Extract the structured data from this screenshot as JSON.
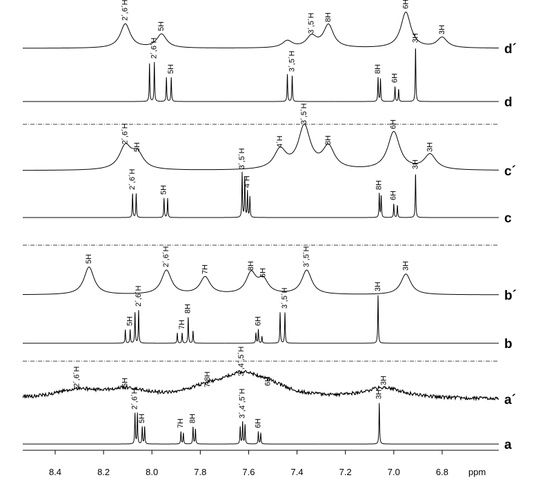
{
  "chart_data": {
    "type": "spectrum",
    "x_label": "ppm",
    "color": "#000000",
    "xlim": [
      8.534,
      6.566
    ],
    "xticks": [
      8.4,
      8.2,
      {
        "value": 8,
        "label": "8.0"
      },
      7.8,
      7.6,
      7.4,
      7.2,
      {
        "value": 7,
        "label": "7.0"
      },
      6.8
    ],
    "series": [
      {
        "name": "d´",
        "width": 0.025,
        "noisy": false,
        "peaks": [
          {
            "ppm": 8.11,
            "height": 35,
            "label": "2´,6´H"
          },
          {
            "ppm": 7.96,
            "height": 20,
            "label": "5H"
          },
          {
            "ppm": 7.44,
            "height": 10
          },
          {
            "ppm": 7.34,
            "height": 16,
            "label": "3´,5´H"
          },
          {
            "ppm": 7.27,
            "height": 33,
            "label": "8H"
          },
          {
            "ppm": 6.95,
            "height": 52,
            "label": "6H"
          },
          {
            "ppm": 6.8,
            "height": 15,
            "label": "3H"
          }
        ]
      },
      {
        "name": "d",
        "width": 0.0015,
        "noisy": false,
        "peaks": [
          {
            "ppm": 8.01,
            "height": 55
          },
          {
            "ppm": 7.99,
            "height": 57,
            "label": "2´,6´H"
          },
          {
            "ppm": 7.94,
            "height": 35
          },
          {
            "ppm": 7.92,
            "height": 35,
            "label": "5H"
          },
          {
            "ppm": 7.44,
            "height": 40
          },
          {
            "ppm": 7.42,
            "height": 38,
            "label": "3´,5´H"
          },
          {
            "ppm": 7.065,
            "height": 35,
            "label": "8H"
          },
          {
            "ppm": 7.055,
            "height": 33
          },
          {
            "ppm": 6.995,
            "height": 22,
            "label": "6H"
          },
          {
            "ppm": 6.98,
            "height": 18
          },
          {
            "ppm": 6.91,
            "height": 80,
            "label": "3H"
          }
        ]
      },
      {
        "name": "c´",
        "width": 0.03,
        "noisy": false,
        "peaks": [
          {
            "ppm": 8.11,
            "height": 33,
            "label": "2´,6´H"
          },
          {
            "ppm": 8.06,
            "height": 22,
            "label": "5H"
          },
          {
            "ppm": 7.47,
            "height": 28,
            "label": "4´H"
          },
          {
            "ppm": 7.37,
            "height": 62,
            "label": "3´,5´H"
          },
          {
            "ppm": 7.27,
            "height": 32,
            "label": "8H"
          },
          {
            "ppm": 7.0,
            "height": 55,
            "label": "6H"
          },
          {
            "ppm": 6.85,
            "height": 22,
            "label": "3H"
          }
        ]
      },
      {
        "name": "c",
        "width": 0.0015,
        "noisy": false,
        "peaks": [
          {
            "ppm": 8.08,
            "height": 35,
            "label": "2´,6´H"
          },
          {
            "ppm": 8.065,
            "height": 35
          },
          {
            "ppm": 7.95,
            "height": 28,
            "label": "5H"
          },
          {
            "ppm": 7.935,
            "height": 28
          },
          {
            "ppm": 7.627,
            "height": 65,
            "label": "3´,5´H"
          },
          {
            "ppm": 7.616,
            "height": 60
          },
          {
            "ppm": 7.605,
            "height": 38,
            "label": "4´H"
          },
          {
            "ppm": 7.595,
            "height": 30
          },
          {
            "ppm": 7.06,
            "height": 35,
            "label": "8H"
          },
          {
            "ppm": 7.052,
            "height": 32
          },
          {
            "ppm": 7.0,
            "height": 20,
            "label": "6H"
          },
          {
            "ppm": 6.985,
            "height": 18
          },
          {
            "ppm": 6.91,
            "height": 65,
            "label": "3H"
          }
        ]
      },
      {
        "name": "b´",
        "width": 0.025,
        "noisy": false,
        "peaks": [
          {
            "ppm": 8.26,
            "height": 40,
            "label": "5H"
          },
          {
            "ppm": 7.94,
            "height": 35,
            "label": "2´,6´H"
          },
          {
            "ppm": 7.78,
            "height": 25,
            "label": "7H"
          },
          {
            "ppm": 7.59,
            "height": 30,
            "label": "8H"
          },
          {
            "ppm": 7.54,
            "height": 20,
            "label": "6H"
          },
          {
            "ppm": 7.36,
            "height": 35,
            "label": "3´,5´H"
          },
          {
            "ppm": 6.95,
            "height": 30,
            "label": "3H"
          }
        ]
      },
      {
        "name": "b",
        "width": 0.0015,
        "noisy": false,
        "peaks": [
          {
            "ppm": 8.11,
            "height": 20
          },
          {
            "ppm": 8.09,
            "height": 20,
            "label": "5H"
          },
          {
            "ppm": 8.07,
            "height": 45
          },
          {
            "ppm": 8.055,
            "height": 48,
            "label": "2´,6´H"
          },
          {
            "ppm": 7.895,
            "height": 15
          },
          {
            "ppm": 7.875,
            "height": 15,
            "label": "7H"
          },
          {
            "ppm": 7.85,
            "height": 38,
            "label": "8H"
          },
          {
            "ppm": 7.83,
            "height": 18
          },
          {
            "ppm": 7.57,
            "height": 15
          },
          {
            "ppm": 7.56,
            "height": 20,
            "label": "6H"
          },
          {
            "ppm": 7.545,
            "height": 10
          },
          {
            "ppm": 7.47,
            "height": 45
          },
          {
            "ppm": 7.45,
            "height": 45,
            "label": "3´,5´H"
          },
          {
            "ppm": 7.065,
            "height": 70,
            "label": "3H"
          }
        ]
      },
      {
        "name": "a´",
        "width": 0.1,
        "noisy": true,
        "peaks": [
          {
            "ppm": 8.31,
            "height": 12,
            "label": "2´,6´H"
          },
          {
            "ppm": 8.11,
            "height": 12,
            "label": "5H"
          },
          {
            "ppm": 7.77,
            "height": 12,
            "label": "7,8H"
          },
          {
            "ppm": 7.63,
            "height": 28,
            "label": "3´,4´,5´H"
          },
          {
            "ppm": 7.52,
            "height": 14,
            "label": "6H"
          },
          {
            "ppm": 7.04,
            "height": 15,
            "label": "3H"
          }
        ]
      },
      {
        "name": "a",
        "width": 0.0015,
        "noisy": false,
        "peaks": [
          {
            "ppm": 8.07,
            "height": 45,
            "label": "2´,6´H"
          },
          {
            "ppm": 8.06,
            "height": 45
          },
          {
            "ppm": 8.04,
            "height": 25,
            "label": "5H"
          },
          {
            "ppm": 8.03,
            "height": 25
          },
          {
            "ppm": 7.88,
            "height": 18,
            "label": "7H"
          },
          {
            "ppm": 7.87,
            "height": 16
          },
          {
            "ppm": 7.83,
            "height": 25,
            "label": "8H"
          },
          {
            "ppm": 7.82,
            "height": 22
          },
          {
            "ppm": 7.635,
            "height": 25
          },
          {
            "ppm": 7.625,
            "height": 32,
            "label": "3´,4´,5´H"
          },
          {
            "ppm": 7.615,
            "height": 28
          },
          {
            "ppm": 7.56,
            "height": 18,
            "label": "6H"
          },
          {
            "ppm": 7.55,
            "height": 16
          },
          {
            "ppm": 7.06,
            "height": 60,
            "label": "3H"
          }
        ]
      }
    ]
  }
}
